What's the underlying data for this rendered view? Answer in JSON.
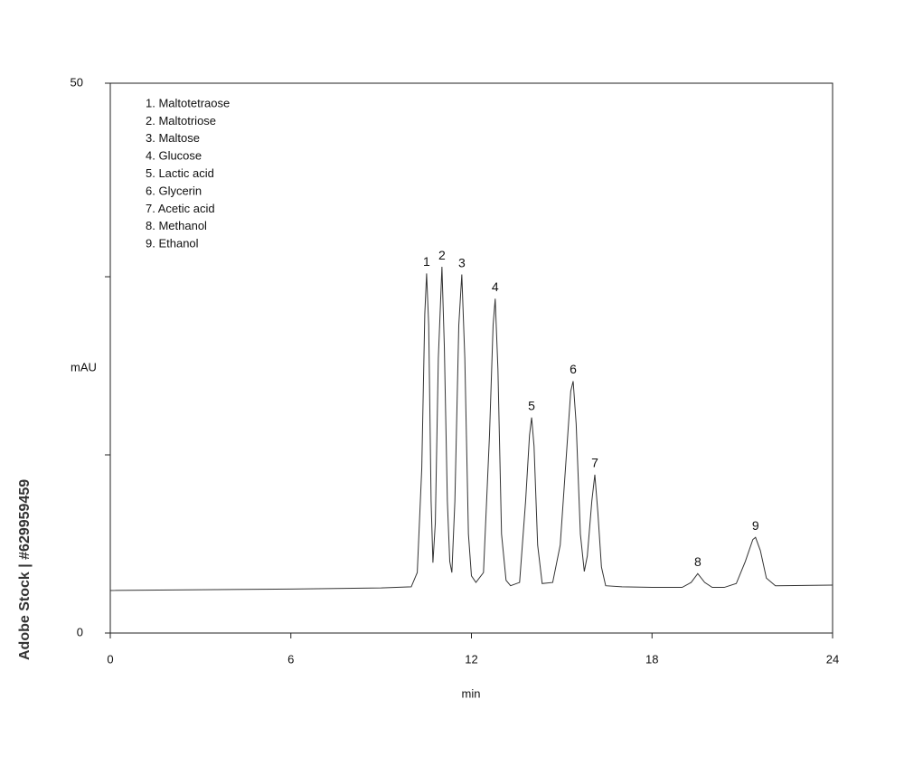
{
  "chart_data": {
    "type": "line",
    "x_label": "min",
    "y_label": "mAU",
    "watermark": "Adobe Stock | #629959459",
    "annotation_list": [
      "1. Maltotetraose",
      "2. Maltotriose",
      "3. Maltose",
      "4. Glucose",
      "5. Lactic acid",
      "6. Glycerin",
      "7. Acetic acid",
      "8. Methanol",
      "9. Ethanol"
    ],
    "peak_labels": [
      {
        "text": "1",
        "x": 10.51,
        "y": 32.7
      },
      {
        "text": "2",
        "x": 11.02,
        "y": 33.3
      },
      {
        "text": "3",
        "x": 11.68,
        "y": 32.6
      },
      {
        "text": "4",
        "x": 12.79,
        "y": 30.4
      },
      {
        "text": "5",
        "x": 14.0,
        "y": 19.6
      },
      {
        "text": "6",
        "x": 15.38,
        "y": 22.9
      },
      {
        "text": "7",
        "x": 16.1,
        "y": 14.4
      },
      {
        "text": "8",
        "x": 19.52,
        "y": 5.4
      },
      {
        "text": "9",
        "x": 21.44,
        "y": 8.7
      }
    ],
    "x": [
      0,
      6,
      9,
      10.0,
      10.2,
      10.35,
      10.45,
      10.51,
      10.58,
      10.66,
      10.72,
      10.8,
      10.9,
      11.02,
      11.1,
      11.2,
      11.28,
      11.35,
      11.45,
      11.58,
      11.68,
      11.78,
      11.9,
      12.0,
      12.15,
      12.4,
      12.6,
      12.72,
      12.79,
      12.88,
      13.0,
      13.15,
      13.3,
      13.6,
      13.8,
      13.93,
      14.0,
      14.08,
      14.2,
      14.35,
      14.7,
      14.95,
      15.15,
      15.3,
      15.38,
      15.48,
      15.62,
      15.75,
      15.85,
      16.0,
      16.1,
      16.2,
      16.32,
      16.46,
      17,
      18,
      19.0,
      19.3,
      19.52,
      19.75,
      20.0,
      20.4,
      20.8,
      21.1,
      21.35,
      21.44,
      21.6,
      21.8,
      22.1,
      24
    ],
    "series": [
      {
        "name": "signal",
        "color": "#333333",
        "values": [
          3.87,
          4.0,
          4.1,
          4.2,
          5.5,
          15,
          29,
          32.7,
          28,
          12,
          6.4,
          10,
          25,
          33.3,
          26,
          12,
          6.5,
          5.5,
          12,
          28,
          32.6,
          25,
          9,
          5.2,
          4.6,
          5.5,
          18,
          28,
          30.4,
          24,
          9,
          4.8,
          4.3,
          4.6,
          12,
          18,
          19.6,
          17,
          8,
          4.5,
          4.6,
          8,
          16,
          22,
          22.9,
          19,
          9,
          5.6,
          7,
          12,
          14.4,
          11,
          6,
          4.3,
          4.2,
          4.15,
          4.15,
          4.6,
          5.4,
          4.6,
          4.15,
          4.15,
          4.5,
          6.5,
          8.5,
          8.7,
          7.5,
          5,
          4.3,
          4.36
        ]
      }
    ],
    "xlim": [
      0,
      24
    ],
    "xticks": [
      0,
      6,
      12,
      18,
      24
    ],
    "ylim": [
      0,
      50
    ],
    "yticks": [
      0,
      50
    ],
    "yminor_ticks": [
      16.2,
      32.4
    ],
    "grid": false
  }
}
